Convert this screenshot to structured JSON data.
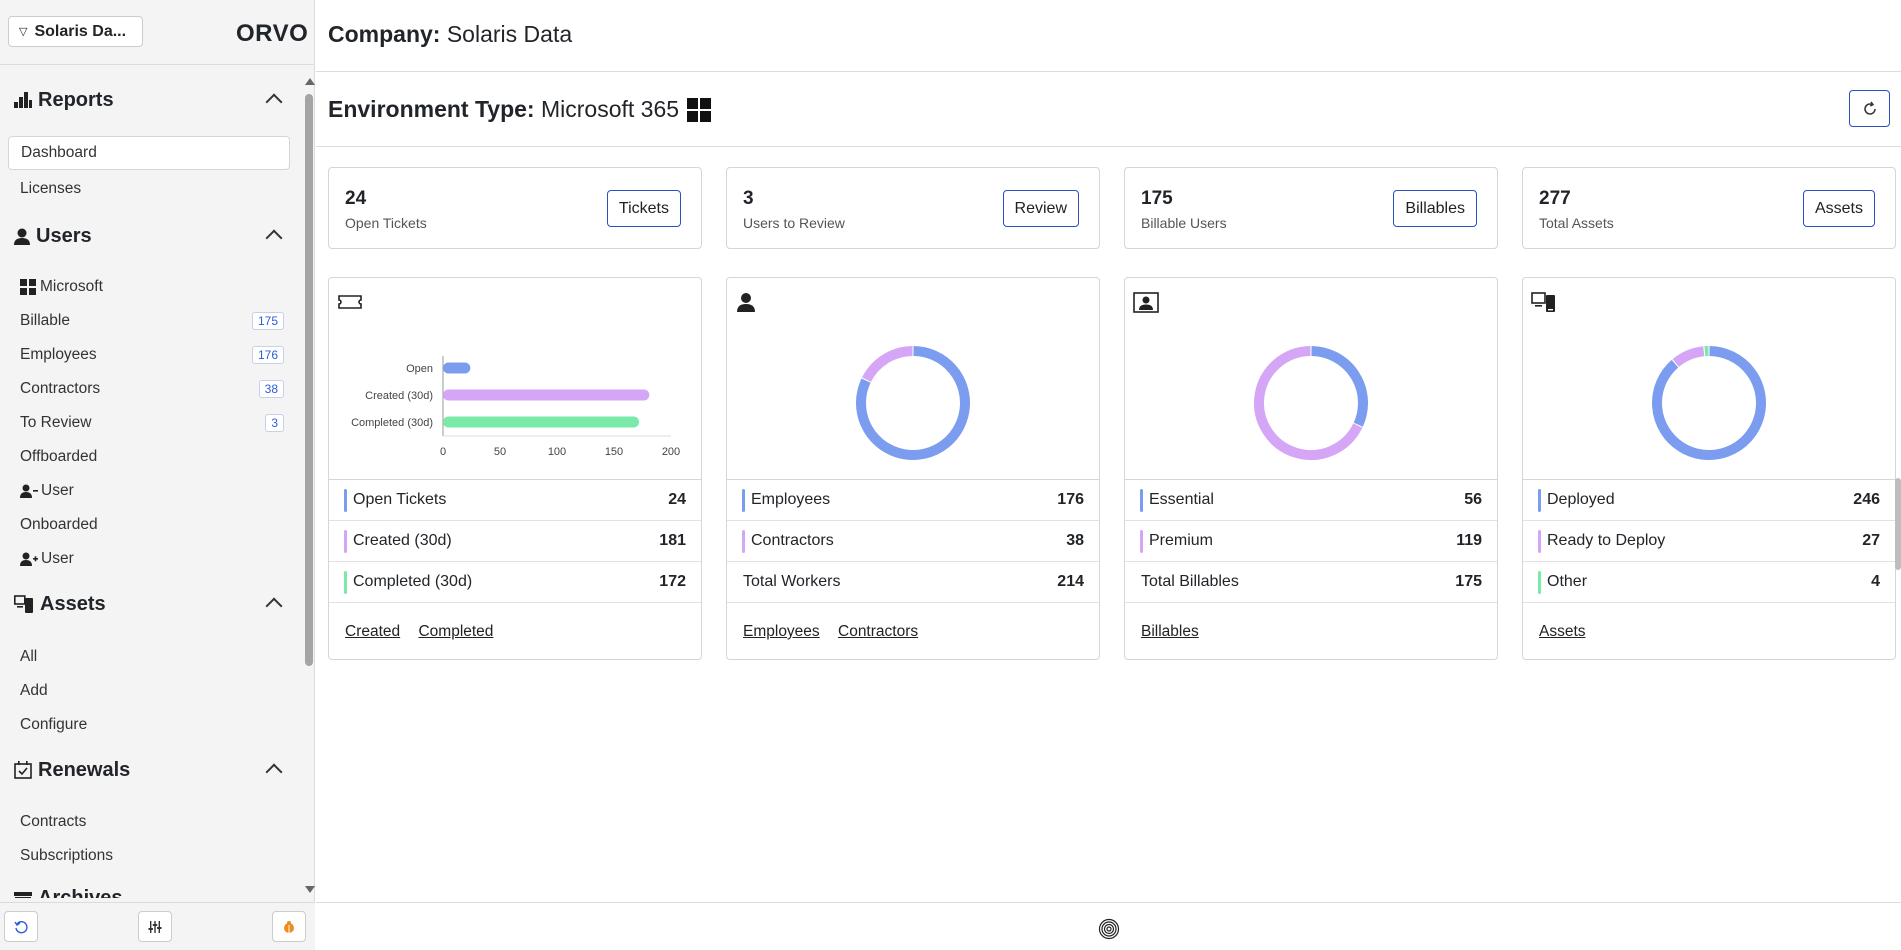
{
  "sidebar": {
    "company_button": "Solaris Da...",
    "logo": "ORVO",
    "sections": {
      "reports": {
        "title": "Reports",
        "items": [
          "Dashboard",
          "Licenses"
        ]
      },
      "users": {
        "title": "Users",
        "microsoft": "Microsoft",
        "billable": "Billable",
        "billable_count": "175",
        "employees": "Employees",
        "employees_count": "176",
        "contractors": "Contractors",
        "contractors_count": "38",
        "to_review": "To Review",
        "to_review_count": "3",
        "offboarded": "Offboarded",
        "offboard_user": "User",
        "onboarded": "Onboarded",
        "onboard_user": "User"
      },
      "assets": {
        "title": "Assets",
        "items": [
          "All",
          "Add",
          "Configure"
        ]
      },
      "renewals": {
        "title": "Renewals",
        "items": [
          "Contracts",
          "Subscriptions"
        ]
      },
      "archives": {
        "title": "Archives"
      }
    }
  },
  "header": {
    "company_label": "Company:",
    "company_name": "Solaris Data",
    "env_label": "Environment Type:",
    "env_value": "Microsoft 365"
  },
  "stats": [
    {
      "value": "24",
      "label": "Open Tickets",
      "button": "Tickets"
    },
    {
      "value": "3",
      "label": "Users to Review",
      "button": "Review"
    },
    {
      "value": "175",
      "label": "Billable Users",
      "button": "Billables"
    },
    {
      "value": "277",
      "label": "Total Assets",
      "button": "Assets"
    }
  ],
  "colors": {
    "blue": "#7b9cef",
    "purple": "#d5a6f5",
    "green": "#7beaa8",
    "accent": "#2b4fbf"
  },
  "cards": {
    "tickets": {
      "rows": [
        {
          "label": "Open Tickets",
          "value": "24"
        },
        {
          "label": "Created (30d)",
          "value": "181"
        },
        {
          "label": "Completed (30d)",
          "value": "172"
        }
      ],
      "links": [
        "Created",
        "Completed"
      ]
    },
    "workers": {
      "rows": [
        {
          "label": "Employees",
          "value": "176"
        },
        {
          "label": "Contractors",
          "value": "38"
        },
        {
          "label": "Total Workers",
          "value": "214"
        }
      ],
      "links": [
        "Employees",
        "Contractors"
      ]
    },
    "billables": {
      "rows": [
        {
          "label": "Essential",
          "value": "56"
        },
        {
          "label": "Premium",
          "value": "119"
        },
        {
          "label": "Total Billables",
          "value": "175"
        }
      ],
      "links": [
        "Billables"
      ]
    },
    "assets": {
      "rows": [
        {
          "label": "Deployed",
          "value": "246"
        },
        {
          "label": "Ready to Deploy",
          "value": "27"
        },
        {
          "label": "Other",
          "value": "4"
        }
      ],
      "links": [
        "Assets"
      ]
    }
  },
  "chart_data": [
    {
      "type": "bar",
      "orientation": "horizontal",
      "categories": [
        "Open",
        "Created (30d)",
        "Completed (30d)"
      ],
      "values": [
        24,
        181,
        172
      ],
      "colors": [
        "#7b9cef",
        "#d5a6f5",
        "#7beaa8"
      ],
      "xlim": [
        0,
        200
      ],
      "xticks": [
        "0",
        "50",
        "100",
        "150",
        "200"
      ]
    },
    {
      "type": "pie",
      "style": "donut",
      "labels": [
        "Employees",
        "Contractors"
      ],
      "values": [
        176,
        38
      ],
      "colors": [
        "#7b9cef",
        "#d5a6f5"
      ]
    },
    {
      "type": "pie",
      "style": "donut",
      "labels": [
        "Essential",
        "Premium"
      ],
      "values": [
        56,
        119
      ],
      "colors": [
        "#7b9cef",
        "#d5a6f5"
      ]
    },
    {
      "type": "pie",
      "style": "donut",
      "labels": [
        "Deployed",
        "Ready to Deploy",
        "Other"
      ],
      "values": [
        246,
        27,
        4
      ],
      "colors": [
        "#7b9cef",
        "#d5a6f5",
        "#7beaa8"
      ]
    }
  ]
}
